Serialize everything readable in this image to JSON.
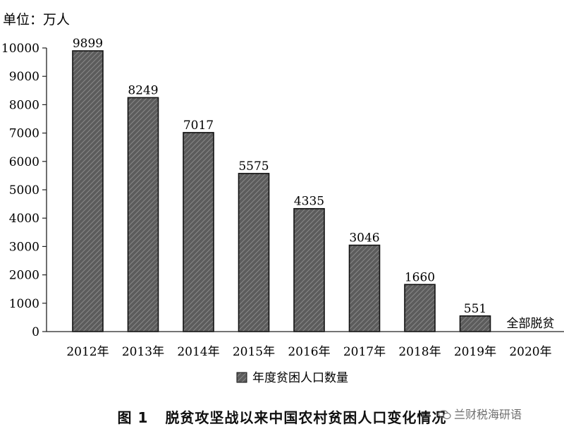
{
  "unit_label": "单位：万人",
  "caption": {
    "number": "图 1",
    "title": "脱贫攻坚战以来中国农村贫困人口变化情况"
  },
  "watermark": {
    "icon": "wechat-icon",
    "text": "兰财税海研语"
  },
  "chart_data": {
    "type": "bar",
    "categories": [
      "2012年",
      "2013年",
      "2014年",
      "2015年",
      "2016年",
      "2017年",
      "2018年",
      "2019年",
      "2020年"
    ],
    "series": [
      {
        "name": "年度贫困人口数量",
        "values": [
          9899,
          8249,
          7017,
          5575,
          4335,
          3046,
          1660,
          551,
          null
        ],
        "labels": [
          "9899",
          "8249",
          "7017",
          "5575",
          "4335",
          "3046",
          "1660",
          "551",
          "全部脱贫"
        ]
      }
    ],
    "ylim": [
      0,
      10000
    ],
    "yticks": [
      0,
      1000,
      2000,
      3000,
      4000,
      5000,
      6000,
      7000,
      8000,
      9000,
      10000
    ],
    "legend_position": "bottom",
    "grid": false,
    "colors": {
      "bar_fill": "#5c5c5c",
      "bar_stripe": "#8a8a8a",
      "bar_stroke": "#111111",
      "axis": "#222222"
    }
  }
}
